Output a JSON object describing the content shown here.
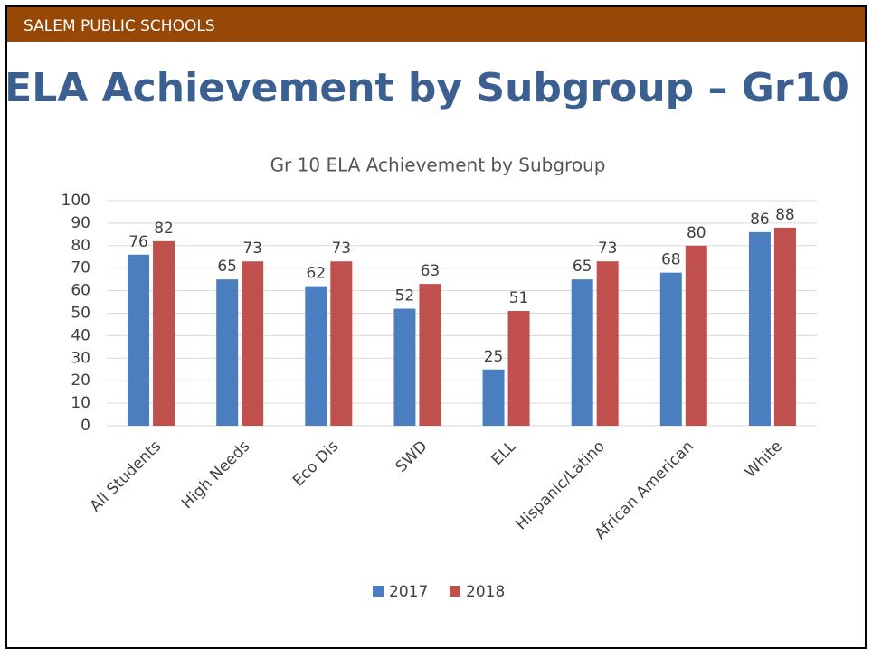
{
  "header": {
    "text": "SALEM PUBLIC SCHOOLS"
  },
  "slide_title": "ELA Achievement by Subgroup – Gr10",
  "chart_data": {
    "type": "bar",
    "title": "Gr 10 ELA Achievement by Subgroup",
    "categories": [
      "All Students",
      "High Needs",
      "Eco Dis",
      "SWD",
      "ELL",
      "Hispanic/Latino",
      "African American",
      "White"
    ],
    "series": [
      {
        "name": "2017",
        "color": "#4a7ebf",
        "values": [
          76,
          65,
          62,
          52,
          25,
          65,
          68,
          86
        ]
      },
      {
        "name": "2018",
        "color": "#c0504d",
        "values": [
          82,
          73,
          73,
          63,
          51,
          73,
          80,
          88
        ]
      }
    ],
    "ylim": [
      0,
      100
    ],
    "yticks": [
      0,
      10,
      20,
      30,
      40,
      50,
      60,
      70,
      80,
      90,
      100
    ],
    "grid": true,
    "legend": "bottom"
  }
}
